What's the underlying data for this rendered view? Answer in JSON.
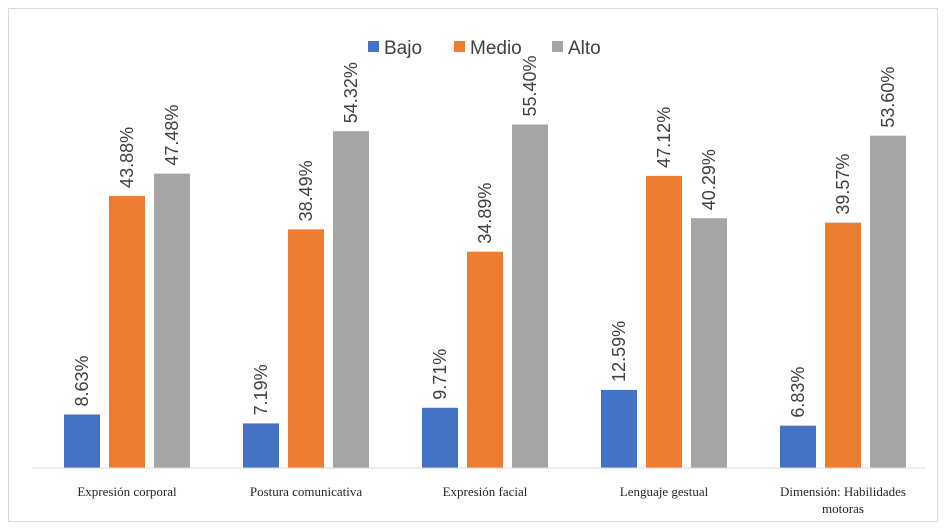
{
  "chart_data": {
    "type": "bar",
    "title": "",
    "xlabel": "",
    "ylabel": "",
    "ylim": [
      0,
      60
    ],
    "grid": false,
    "legend_position": "top",
    "categories": [
      [
        "Expresión corporal"
      ],
      [
        "Postura comunicativa"
      ],
      [
        "Expresión facial"
      ],
      [
        "Lenguaje gestual"
      ],
      [
        "Dimensión: Habilidades",
        "motoras"
      ]
    ],
    "series": [
      {
        "name": "Bajo",
        "color": "#4472c4",
        "values": [
          8.63,
          7.19,
          9.71,
          12.59,
          6.83
        ],
        "labels": [
          "8.63%",
          "7.19%",
          "9.71%",
          "12.59%",
          "6.83%"
        ]
      },
      {
        "name": "Medio",
        "color": "#ed7d31",
        "values": [
          43.88,
          38.49,
          34.89,
          47.12,
          39.57
        ],
        "labels": [
          "43.88%",
          "38.49%",
          "34.89%",
          "47.12%",
          "39.57%"
        ]
      },
      {
        "name": "Alto",
        "color": "#a5a5a5",
        "values": [
          47.48,
          54.32,
          55.4,
          40.29,
          53.6
        ],
        "labels": [
          "47.48%",
          "54.32%",
          "55.40%",
          "40.29%",
          "53.60%"
        ]
      }
    ]
  }
}
